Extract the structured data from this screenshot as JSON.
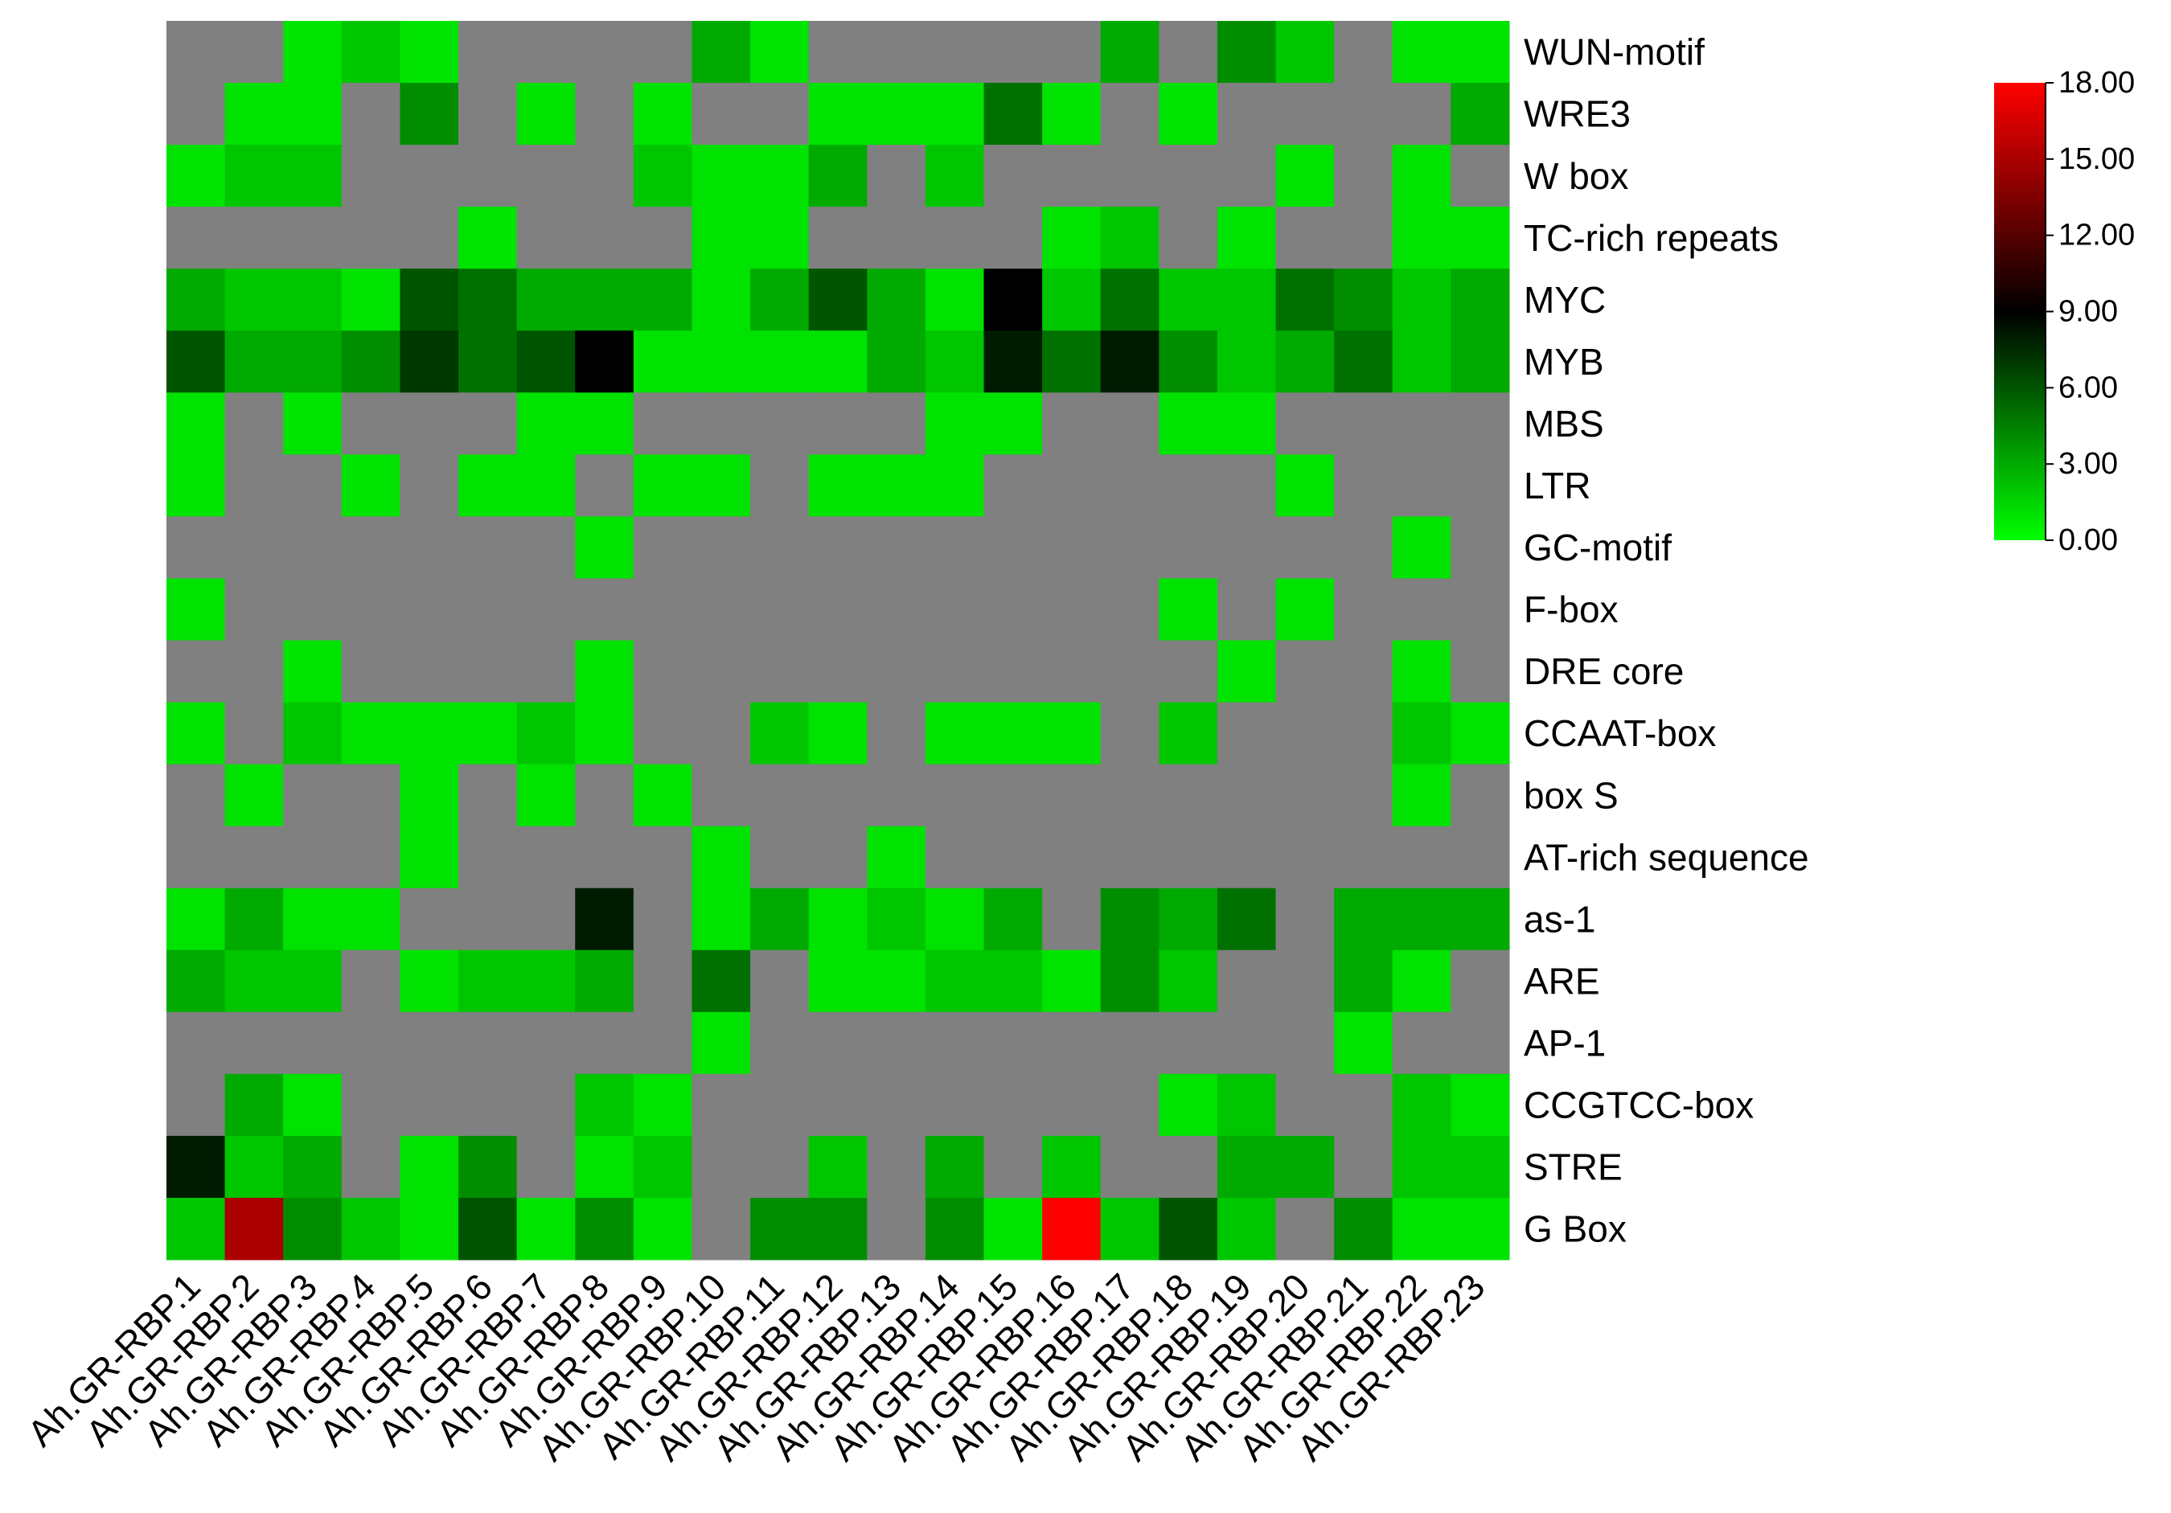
{
  "chart_data": {
    "type": "heatmap",
    "columns": [
      "Ah.GR-RBP.1",
      "Ah.GR-RBP.2",
      "Ah.GR-RBP.3",
      "Ah.GR-RBP.4",
      "Ah.GR-RBP.5",
      "Ah.GR-RBP.6",
      "Ah.GR-RBP.7",
      "Ah.GR-RBP.8",
      "Ah.GR-RBP.9",
      "Ah.GR-RBP.10",
      "Ah.GR-RBP.11",
      "Ah.GR-RBP.12",
      "Ah.GR-RBP.13",
      "Ah.GR-RBP.14",
      "Ah.GR-RBP.15",
      "Ah.GR-RBP.16",
      "Ah.GR-RBP.17",
      "Ah.GR-RBP.18",
      "Ah.GR-RBP.19",
      "Ah.GR-RBP.20",
      "Ah.GR-RBP.21",
      "Ah.GR-RBP.22",
      "Ah.GR-RBP.23"
    ],
    "rows": [
      "WUN-motif",
      "WRE3",
      "W box",
      "TC-rich repeats",
      "MYC",
      "MYB",
      "MBS",
      "LTR",
      "GC-motif",
      "F-box",
      "DRE core",
      "CCAAT-box",
      "box S",
      "AT-rich sequence",
      "as-1",
      "ARE",
      "AP-1",
      "CCGTCC-box",
      "STRE",
      "G Box"
    ],
    "values": [
      [
        null,
        null,
        1,
        2,
        1,
        null,
        null,
        null,
        null,
        3,
        1,
        null,
        null,
        null,
        null,
        null,
        3,
        null,
        4,
        2,
        null,
        1,
        1
      ],
      [
        null,
        1,
        1,
        null,
        4,
        null,
        1,
        null,
        1,
        null,
        null,
        1,
        1,
        1,
        5,
        1,
        null,
        1,
        null,
        null,
        null,
        null,
        3
      ],
      [
        1,
        2,
        2,
        null,
        null,
        null,
        null,
        null,
        2,
        1,
        1,
        3,
        null,
        2,
        null,
        null,
        null,
        null,
        null,
        1,
        null,
        1,
        null
      ],
      [
        null,
        null,
        null,
        null,
        null,
        1,
        null,
        null,
        null,
        1,
        1,
        null,
        null,
        null,
        null,
        1,
        2,
        null,
        1,
        null,
        null,
        1,
        1
      ],
      [
        3,
        2,
        2,
        1,
        6,
        5,
        3,
        3,
        3,
        1,
        3,
        6,
        3,
        1,
        9,
        2,
        5,
        2,
        2,
        5,
        4,
        2,
        3
      ],
      [
        6,
        3,
        3,
        4,
        7,
        5,
        6,
        9,
        1,
        1,
        1,
        1,
        3,
        2,
        8,
        5,
        8,
        4,
        2,
        3,
        5,
        2,
        3
      ],
      [
        1,
        null,
        1,
        null,
        null,
        null,
        1,
        1,
        null,
        null,
        null,
        null,
        null,
        1,
        1,
        null,
        null,
        1,
        1,
        null,
        null,
        null,
        null
      ],
      [
        1,
        null,
        null,
        1,
        null,
        1,
        1,
        null,
        1,
        1,
        null,
        1,
        1,
        1,
        null,
        null,
        null,
        null,
        null,
        1,
        null,
        null,
        null
      ],
      [
        null,
        null,
        null,
        null,
        null,
        null,
        null,
        1,
        null,
        null,
        null,
        null,
        null,
        null,
        null,
        null,
        null,
        null,
        null,
        null,
        null,
        1,
        null
      ],
      [
        1,
        null,
        null,
        null,
        null,
        null,
        null,
        null,
        null,
        null,
        null,
        null,
        null,
        null,
        null,
        null,
        null,
        1,
        null,
        1,
        null,
        null,
        null
      ],
      [
        null,
        null,
        1,
        null,
        null,
        null,
        null,
        1,
        null,
        null,
        null,
        null,
        null,
        null,
        null,
        null,
        null,
        null,
        1,
        null,
        null,
        1,
        null
      ],
      [
        1,
        null,
        2,
        1,
        1,
        1,
        2,
        1,
        null,
        null,
        2,
        1,
        null,
        1,
        1,
        1,
        null,
        2,
        null,
        null,
        null,
        2,
        1
      ],
      [
        null,
        1,
        null,
        null,
        1,
        null,
        1,
        null,
        1,
        null,
        null,
        null,
        null,
        null,
        null,
        null,
        null,
        null,
        null,
        null,
        null,
        1,
        null
      ],
      [
        null,
        null,
        null,
        null,
        1,
        null,
        null,
        null,
        null,
        1,
        null,
        null,
        1,
        null,
        null,
        null,
        null,
        null,
        null,
        null,
        null,
        null,
        null
      ],
      [
        1,
        3,
        1,
        1,
        null,
        null,
        null,
        8,
        null,
        1,
        3,
        1,
        2,
        1,
        3,
        null,
        4,
        3,
        5,
        null,
        3,
        3,
        3
      ],
      [
        3,
        2,
        2,
        null,
        1,
        2,
        2,
        3,
        null,
        5,
        null,
        1,
        1,
        2,
        2,
        1,
        4,
        2,
        null,
        null,
        3,
        1,
        null
      ],
      [
        null,
        null,
        null,
        null,
        null,
        null,
        null,
        null,
        null,
        1,
        null,
        null,
        null,
        null,
        null,
        null,
        null,
        null,
        null,
        null,
        1,
        null,
        null
      ],
      [
        null,
        3,
        1,
        null,
        null,
        null,
        null,
        2,
        1,
        null,
        null,
        null,
        null,
        null,
        null,
        null,
        null,
        1,
        2,
        null,
        null,
        2,
        1
      ],
      [
        8,
        2,
        3,
        null,
        1,
        4,
        null,
        1,
        2,
        null,
        null,
        2,
        null,
        3,
        null,
        2,
        null,
        null,
        3,
        3,
        null,
        2,
        2
      ],
      [
        2,
        15,
        4,
        2,
        1,
        6,
        1,
        4,
        1,
        null,
        4,
        4,
        null,
        4,
        1,
        18,
        2,
        6,
        2,
        null,
        4,
        1,
        1
      ]
    ],
    "colormap": [
      "#00ff00",
      "#000000",
      "#ff0000"
    ],
    "missing_color": "#808080",
    "zlim": [
      0,
      18
    ],
    "zticks": [
      {
        "value": 0,
        "label": "0.00"
      },
      {
        "value": 3,
        "label": "3.00"
      },
      {
        "value": 6,
        "label": "6.00"
      },
      {
        "value": 9,
        "label": "9.00"
      },
      {
        "value": 12,
        "label": "12.00"
      },
      {
        "value": 15,
        "label": "15.00"
      },
      {
        "value": 18,
        "label": "18.00"
      }
    ]
  }
}
